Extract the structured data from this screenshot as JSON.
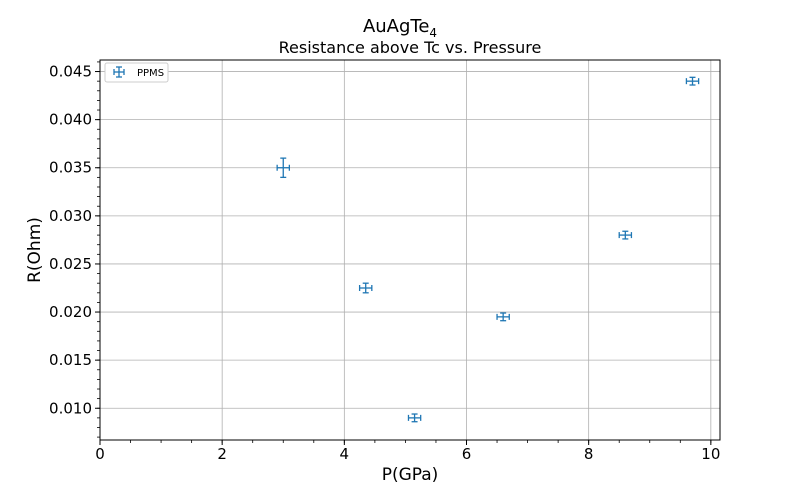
{
  "chart_data": {
    "type": "scatter",
    "title": "AuAgTe",
    "title_subscript": "4",
    "subtitle": "Resistance above Tc vs. Pressure",
    "xlabel": "P(GPa)",
    "ylabel": "R(Ohm)",
    "xlim": [
      0,
      10.15
    ],
    "ylim": [
      0.0067,
      0.0462
    ],
    "xticks": [
      0,
      2,
      4,
      6,
      8,
      10
    ],
    "xtick_labels": [
      "0",
      "2",
      "4",
      "6",
      "8",
      "10"
    ],
    "yticks": [
      0.01,
      0.015,
      0.02,
      0.025,
      0.03,
      0.035,
      0.04,
      0.045
    ],
    "ytick_labels": [
      "0.010",
      "0.015",
      "0.020",
      "0.025",
      "0.030",
      "0.035",
      "0.040",
      "0.045"
    ],
    "grid": true,
    "legend_position": "top-left",
    "color": "#1f77b4",
    "series": [
      {
        "name": "PPMS",
        "points": [
          {
            "x": 3.0,
            "y": 0.035,
            "xerr": 0.1,
            "yerr": 0.001
          },
          {
            "x": 4.35,
            "y": 0.0225,
            "xerr": 0.1,
            "yerr": 0.0005
          },
          {
            "x": 5.15,
            "y": 0.009,
            "xerr": 0.1,
            "yerr": 0.0004
          },
          {
            "x": 6.6,
            "y": 0.0195,
            "xerr": 0.1,
            "yerr": 0.0004
          },
          {
            "x": 8.6,
            "y": 0.028,
            "xerr": 0.1,
            "yerr": 0.0004
          },
          {
            "x": 9.7,
            "y": 0.044,
            "xerr": 0.1,
            "yerr": 0.0004
          }
        ]
      }
    ]
  }
}
